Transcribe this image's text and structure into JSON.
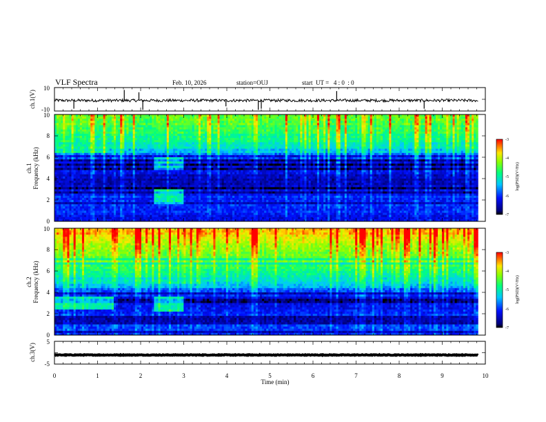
{
  "header": {
    "title": "VLF Spectra",
    "date": "Feb. 10, 2026",
    "station": "station=OUJ",
    "start_time": "start  UT =   4 : 0  : 0"
  },
  "chart_data": [
    {
      "type": "line",
      "ylabel": "ch.1(V)",
      "ylim": [
        -10,
        10
      ],
      "yticks": [
        "10",
        "-10"
      ],
      "xlim": [
        0,
        10
      ],
      "baseline": -1,
      "noise_amplitude": 1.2,
      "spikes": [
        {
          "x": 0.45,
          "y": -8
        },
        {
          "x": 1.62,
          "y": 8
        },
        {
          "x": 1.96,
          "y": 6
        },
        {
          "x": 2.05,
          "y": -9
        },
        {
          "x": 3.98,
          "y": -6
        },
        {
          "x": 4.73,
          "y": -9
        },
        {
          "x": 4.8,
          "y": -8
        },
        {
          "x": 6.55,
          "y": 7
        },
        {
          "x": 8.58,
          "y": -8
        }
      ]
    },
    {
      "type": "heatmap",
      "channel": "ch.1",
      "ylabel": "Frequency (kHz)",
      "ylim": [
        0,
        10
      ],
      "yticks": [
        "0",
        "2",
        "4",
        "6",
        "8",
        "10"
      ],
      "xlim": [
        0,
        10
      ],
      "data_end_min": 9.83,
      "colorbar": {
        "label": "log(PSD)(V²/Hz)",
        "min": -7,
        "max": -3,
        "ticks": [
          "-3",
          "-4",
          "-5",
          "-6",
          "-7"
        ]
      },
      "band_profile": [
        {
          "f": 0.5,
          "v": -6.2
        },
        {
          "f": 1.5,
          "v": -6.0
        },
        {
          "f": 2.5,
          "v": -6.1
        },
        {
          "f": 3.5,
          "v": -6.6
        },
        {
          "f": 4.5,
          "v": -6.3
        },
        {
          "f": 5.5,
          "v": -6.4
        },
        {
          "f": 6.5,
          "v": -5.4
        },
        {
          "f": 7.5,
          "v": -4.9
        },
        {
          "f": 8.5,
          "v": -4.6
        },
        {
          "f": 9.5,
          "v": -4.4
        }
      ],
      "features": [
        {
          "t0": 2.3,
          "t1": 3.0,
          "f0": 1.6,
          "f1": 3.0,
          "v": -5.0
        },
        {
          "t0": 0.0,
          "t1": 1.3,
          "f0": 6.5,
          "f1": 9.5,
          "v": -5.0
        },
        {
          "t0": 2.3,
          "t1": 3.0,
          "f0": 4.8,
          "f1": 6.0,
          "v": -5.2
        }
      ]
    },
    {
      "type": "heatmap",
      "channel": "ch.2",
      "ylabel": "Frequency (kHz)",
      "ylim": [
        0,
        10
      ],
      "yticks": [
        "0",
        "2",
        "4",
        "6",
        "8",
        "10"
      ],
      "xlim": [
        0,
        10
      ],
      "data_end_min": 9.83,
      "colorbar": {
        "label": "log(PSD)(V²/Hz)",
        "min": -7,
        "max": -3,
        "ticks": [
          "-3",
          "-4",
          "-5",
          "-6",
          "-7"
        ]
      },
      "band_profile": [
        {
          "f": 0.5,
          "v": -6.0
        },
        {
          "f": 1.5,
          "v": -6.1
        },
        {
          "f": 2.5,
          "v": -6.2
        },
        {
          "f": 3.5,
          "v": -6.3
        },
        {
          "f": 4.5,
          "v": -5.6
        },
        {
          "f": 5.5,
          "v": -5.0
        },
        {
          "f": 6.5,
          "v": -4.6
        },
        {
          "f": 7.5,
          "v": -4.3
        },
        {
          "f": 8.5,
          "v": -4.0
        },
        {
          "f": 9.5,
          "v": -3.7
        }
      ],
      "features": [
        {
          "t0": 0.0,
          "t1": 1.4,
          "f0": 2.5,
          "f1": 3.6,
          "v": -5.0
        },
        {
          "t0": 2.3,
          "t1": 3.0,
          "f0": 2.3,
          "f1": 3.6,
          "v": -5.0
        },
        {
          "t0": 2.3,
          "t1": 3.4,
          "f0": 4.8,
          "f1": 5.3,
          "v": -5.1
        },
        {
          "t0": 0.0,
          "t1": 1.4,
          "f0": 4.8,
          "f1": 5.2,
          "v": -5.2
        }
      ]
    },
    {
      "type": "line",
      "ylabel": "ch.3(V)",
      "ylim": [
        -5,
        5
      ],
      "yticks": [
        "5",
        "-5"
      ],
      "xlim": [
        0,
        10
      ],
      "xlabel": "Time (min)",
      "xticks": [
        "0",
        "1",
        "2",
        "3",
        "4",
        "5",
        "6",
        "7",
        "8",
        "9",
        "10"
      ],
      "baseline": -1,
      "noise_amplitude": 0.15,
      "spikes": []
    }
  ],
  "colors": {
    "axis": "#000000",
    "trace": "#000000",
    "background": "#ffffff"
  }
}
